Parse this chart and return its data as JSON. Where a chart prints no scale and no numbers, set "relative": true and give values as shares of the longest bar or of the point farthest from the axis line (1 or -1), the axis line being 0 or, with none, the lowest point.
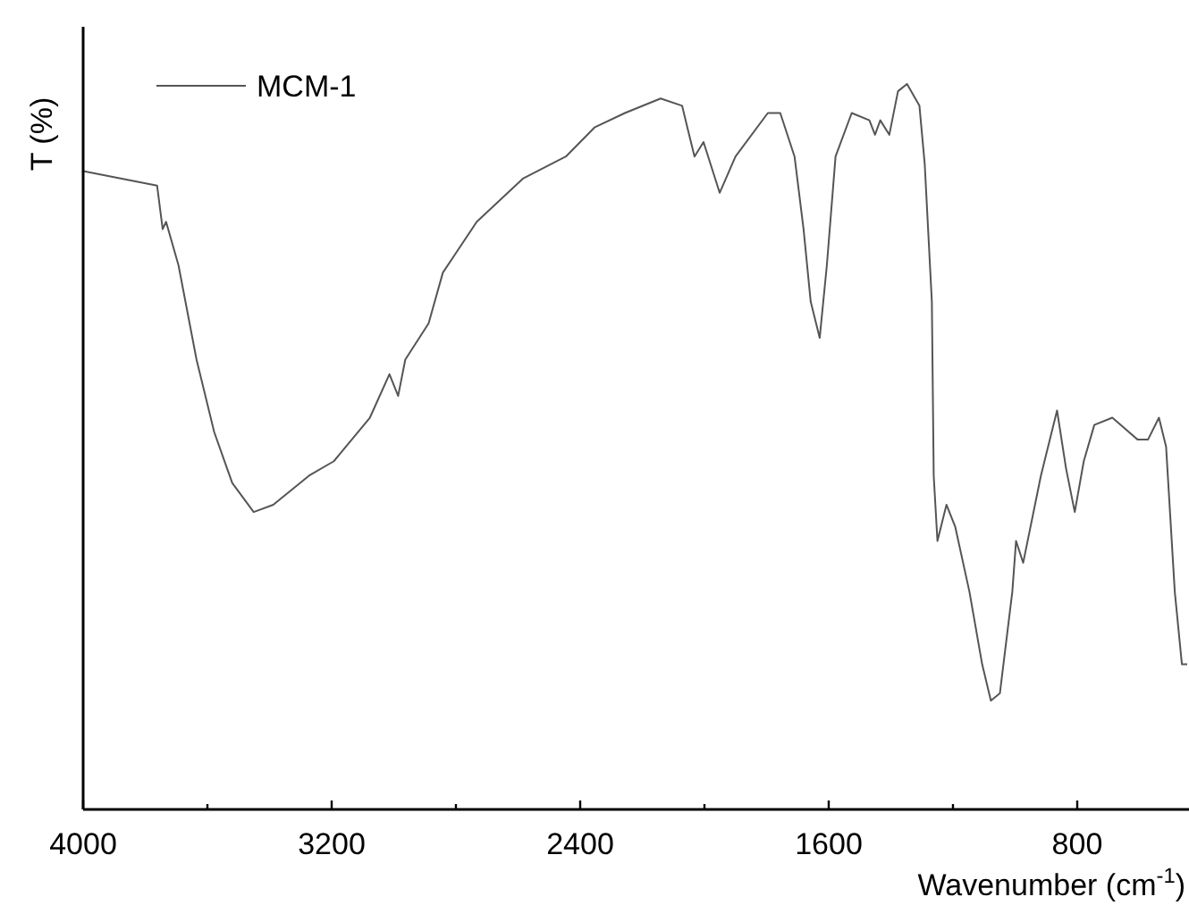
{
  "chart_data": {
    "type": "line",
    "relative": true,
    "xlabel": "Wavenumber (cm$^{-1}$)",
    "ylabel": "T (%)",
    "xlim": [
      4000,
      446
    ],
    "xticks": [
      4000,
      {
        "value": 3600,
        "label": null
      },
      3200,
      {
        "value": 2800,
        "label": null
      },
      2400,
      {
        "value": 2000,
        "label": null
      },
      1600,
      {
        "value": 1200,
        "label": null
      },
      800
    ],
    "tick_labels": "x",
    "legend": "top left",
    "grid": false,
    "series": [
      {
        "name": "MCM-1",
        "color": "#555555",
        "x": [
          4000,
          3762,
          3744,
          3733,
          3693,
          3635,
          3578,
          3520,
          3451,
          3388,
          3273,
          3193,
          3077,
          3014,
          2986,
          2963,
          2888,
          2842,
          2733,
          2583,
          2446,
          2354,
          2256,
          2141,
          2072,
          2055,
          2032,
          2003,
          1951,
          1900,
          1796,
          1756,
          1710,
          1681,
          1658,
          1629,
          1606,
          1578,
          1526,
          1469,
          1451,
          1434,
          1405,
          1377,
          1348,
          1308,
          1291,
          1268,
          1262,
          1250,
          1221,
          1193,
          1147,
          1106,
          1078,
          1049,
          1009,
          997,
          974,
          917,
          865,
          836,
          808,
          779,
          745,
          687,
          606,
          572,
          537,
          514,
          486,
          463,
          446
        ],
        "values": [
          0.88,
          0.86,
          0.8,
          0.81,
          0.75,
          0.62,
          0.52,
          0.45,
          0.41,
          0.42,
          0.46,
          0.48,
          0.54,
          0.6,
          0.57,
          0.62,
          0.67,
          0.74,
          0.81,
          0.87,
          0.9,
          0.94,
          0.96,
          0.98,
          0.97,
          0.94,
          0.9,
          0.92,
          0.85,
          0.9,
          0.96,
          0.96,
          0.9,
          0.8,
          0.7,
          0.65,
          0.75,
          0.9,
          0.96,
          0.95,
          0.93,
          0.95,
          0.93,
          0.99,
          1,
          0.97,
          0.89,
          0.7,
          0.46,
          0.37,
          0.42,
          0.39,
          0.3,
          0.2,
          0.15,
          0.16,
          0.3,
          0.37,
          0.34,
          0.46,
          0.55,
          0.47,
          0.41,
          0.48,
          0.53,
          0.54,
          0.51,
          0.51,
          0.54,
          0.5,
          0.3,
          0.2,
          0.2
        ]
      }
    ]
  }
}
